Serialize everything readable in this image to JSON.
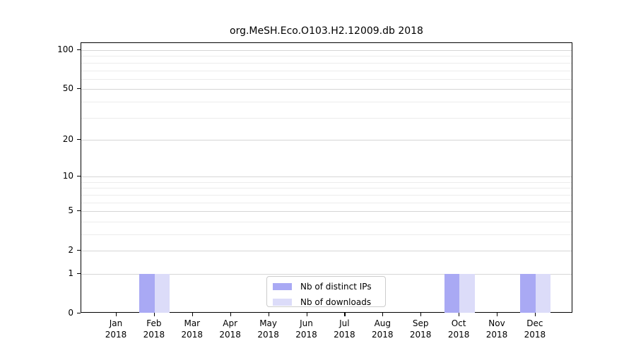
{
  "title": "org.MeSH.Eco.O103.H2.12009.db 2018",
  "chart_data": {
    "type": "bar",
    "title": "org.MeSH.Eco.O103.H2.12009.db 2018",
    "yscale": "log1p",
    "ylim": [
      0,
      113
    ],
    "grid": "horizontal",
    "legend_position": "lower center",
    "year": "2018",
    "categories": [
      "Jan",
      "Feb",
      "Mar",
      "Apr",
      "May",
      "Jun",
      "Jul",
      "Aug",
      "Sep",
      "Oct",
      "Nov",
      "Dec"
    ],
    "series": [
      {
        "name": "Nb of distinct IPs",
        "color": "#a9a9f4",
        "values": [
          0,
          1,
          0,
          0,
          0,
          0,
          0,
          0,
          0,
          1,
          0,
          1
        ]
      },
      {
        "name": "Nb of downloads",
        "color": "#dcdcf9",
        "values": [
          0,
          1,
          0,
          0,
          0,
          0,
          0,
          0,
          0,
          1,
          0,
          1
        ]
      }
    ],
    "y_ticks": [
      0,
      1,
      2,
      5,
      10,
      20,
      50,
      100
    ],
    "y_minor_grid": [
      3,
      4,
      6,
      7,
      8,
      9,
      30,
      40,
      60,
      70,
      80,
      90
    ],
    "colors": {
      "axis": "#000000",
      "major_grid": "#d6d6d6",
      "minor_grid": "#ececec",
      "legend_border": "#cccccc",
      "background": "#ffffff"
    }
  }
}
